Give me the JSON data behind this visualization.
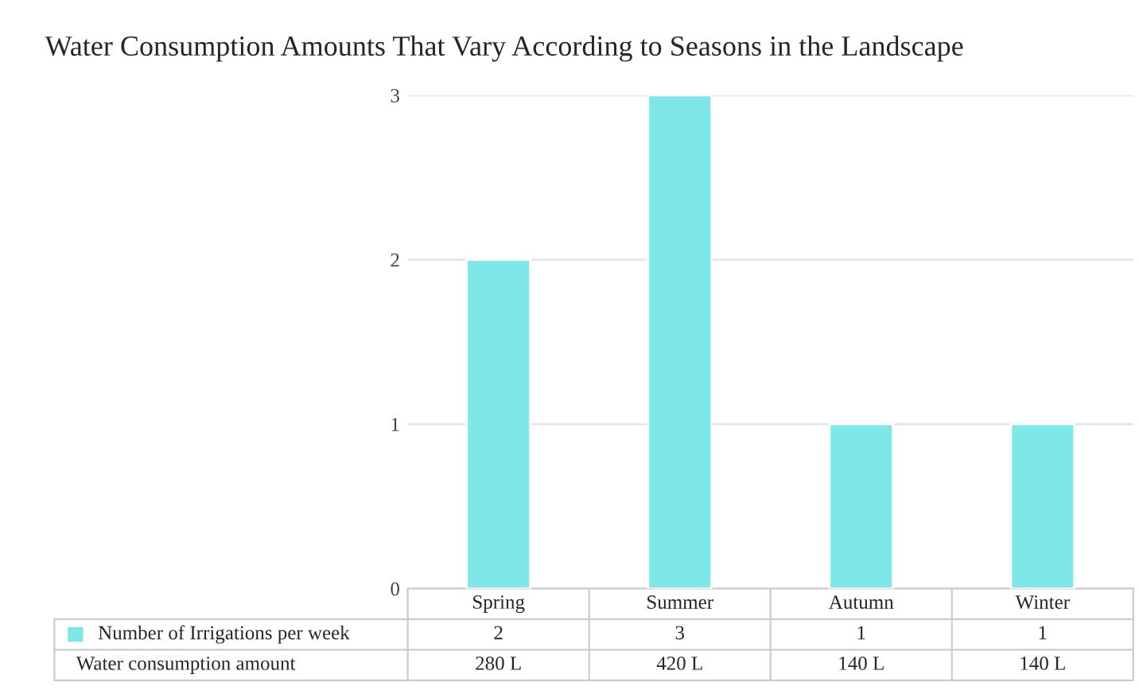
{
  "chart_data": {
    "type": "bar",
    "title": "Water Consumption Amounts That Vary According to Seasons in the Landscape",
    "categories": [
      "Spring",
      "Summer",
      "Autumn",
      "Winter"
    ],
    "series": [
      {
        "name": "Number of Irrigations per week",
        "color": "#7ee8e8",
        "values": [
          2,
          3,
          1,
          1
        ]
      }
    ],
    "ylim": [
      0,
      3
    ],
    "yticks": [
      0,
      1,
      2,
      3
    ],
    "grid": "y",
    "legend": "bottom",
    "data_labels": true,
    "annotations": [
      "Water consumption amount",
      "280 L",
      "420 L",
      "140 L",
      "140 L"
    ]
  }
}
